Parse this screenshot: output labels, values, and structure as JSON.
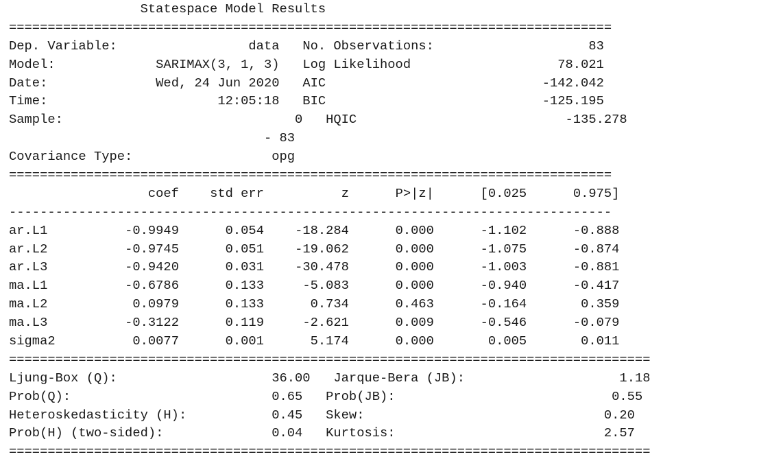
{
  "title": "Statespace Model Results",
  "model_info": {
    "left": [
      {
        "label": "Dep. Variable:",
        "value": "data"
      },
      {
        "label": "Model:",
        "value": "SARIMAX(3, 1, 3)"
      },
      {
        "label": "Date:",
        "value": "Wed, 24 Jun 2020"
      },
      {
        "label": "Time:",
        "value": "12:05:18"
      },
      {
        "label": "Sample:",
        "value": "0"
      },
      {
        "label": "",
        "value": "- 83"
      },
      {
        "label": "Covariance Type:",
        "value": "opg"
      }
    ],
    "right": [
      {
        "label": "No. Observations:",
        "value": "83"
      },
      {
        "label": "Log Likelihood",
        "value": "78.021"
      },
      {
        "label": "AIC",
        "value": "-142.042"
      },
      {
        "label": "BIC",
        "value": "-125.195"
      },
      {
        "label": "HQIC",
        "value": "-135.278"
      }
    ]
  },
  "coef_table": {
    "headers": [
      "coef",
      "std err",
      "z",
      "P>|z|",
      "[0.025",
      "0.975]"
    ],
    "rows": [
      {
        "name": "ar.L1",
        "values": [
          "-0.9949",
          "0.054",
          "-18.284",
          "0.000",
          "-1.102",
          "-0.888"
        ]
      },
      {
        "name": "ar.L2",
        "values": [
          "-0.9745",
          "0.051",
          "-19.062",
          "0.000",
          "-1.075",
          "-0.874"
        ]
      },
      {
        "name": "ar.L3",
        "values": [
          "-0.9420",
          "0.031",
          "-30.478",
          "0.000",
          "-1.003",
          "-0.881"
        ]
      },
      {
        "name": "ma.L1",
        "values": [
          "-0.6786",
          "0.133",
          "-5.083",
          "0.000",
          "-0.940",
          "-0.417"
        ]
      },
      {
        "name": "ma.L2",
        "values": [
          "0.0979",
          "0.133",
          "0.734",
          "0.463",
          "-0.164",
          "0.359"
        ]
      },
      {
        "name": "ma.L3",
        "values": [
          "-0.3122",
          "0.119",
          "-2.621",
          "0.009",
          "-0.546",
          "-0.079"
        ]
      },
      {
        "name": "sigma2",
        "values": [
          "0.0077",
          "0.001",
          "5.174",
          "0.000",
          "0.005",
          "0.011"
        ]
      }
    ]
  },
  "diagnostics": {
    "left": [
      {
        "label": "Ljung-Box (Q):",
        "value": "36.00"
      },
      {
        "label": "Prob(Q):",
        "value": "0.65"
      },
      {
        "label": "Heteroskedasticity (H):",
        "value": "0.45"
      },
      {
        "label": "Prob(H) (two-sided):",
        "value": "0.04"
      }
    ],
    "right": [
      {
        "label": "Jarque-Bera (JB):",
        "value": "1.18"
      },
      {
        "label": "Prob(JB):",
        "value": "0.55"
      },
      {
        "label": "Skew:",
        "value": "0.20"
      },
      {
        "label": "Kurtosis:",
        "value": "2.57"
      }
    ]
  }
}
